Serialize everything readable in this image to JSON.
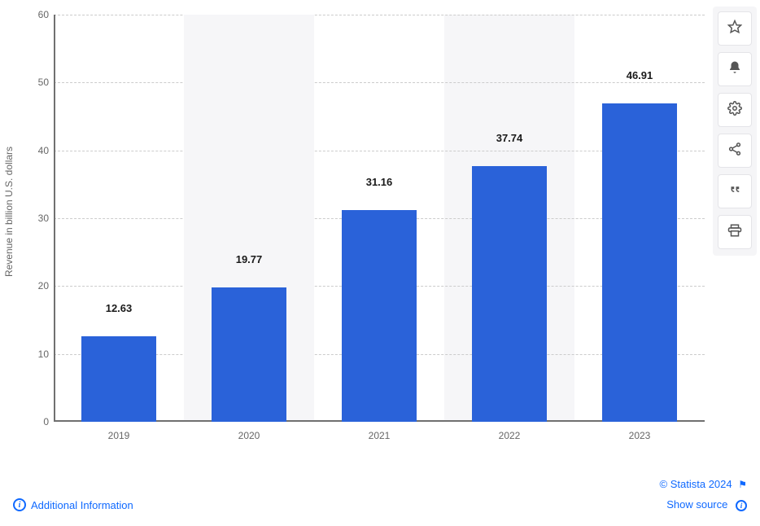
{
  "chart": {
    "type": "bar",
    "categories": [
      "2019",
      "2020",
      "2021",
      "2022",
      "2023"
    ],
    "values": [
      12.63,
      19.77,
      31.16,
      37.74,
      46.91
    ],
    "value_labels": [
      "12.63",
      "19.77",
      "31.16",
      "37.74",
      "46.91"
    ],
    "bar_color": "#2a62d9",
    "ylabel": "Revenue in billion U.S. dollars",
    "ylim_min": 0,
    "ylim_max": 60,
    "ytick_step": 10,
    "yticks": [
      "0",
      "10",
      "20",
      "30",
      "40",
      "50",
      "60"
    ],
    "grid_color": "#cccccc",
    "grid_dash": true,
    "axis_color": "#707070",
    "label_fontsize": 12,
    "label_color": "#666666",
    "value_label_fontsize": 13,
    "value_label_weight": 700,
    "value_label_color": "#1a1a1a",
    "background_color": "#ffffff",
    "band_color": "#f6f6f8",
    "bar_width_ratio": 0.58
  },
  "toolbar": {
    "items": [
      {
        "name": "favorite",
        "icon": "star"
      },
      {
        "name": "alert",
        "icon": "bell"
      },
      {
        "name": "settings",
        "icon": "gear"
      },
      {
        "name": "share",
        "icon": "share"
      },
      {
        "name": "cite",
        "icon": "quote"
      },
      {
        "name": "print",
        "icon": "print"
      }
    ]
  },
  "footer": {
    "additional_info": "Additional Information",
    "copyright": "© Statista 2024",
    "show_source": "Show source"
  }
}
